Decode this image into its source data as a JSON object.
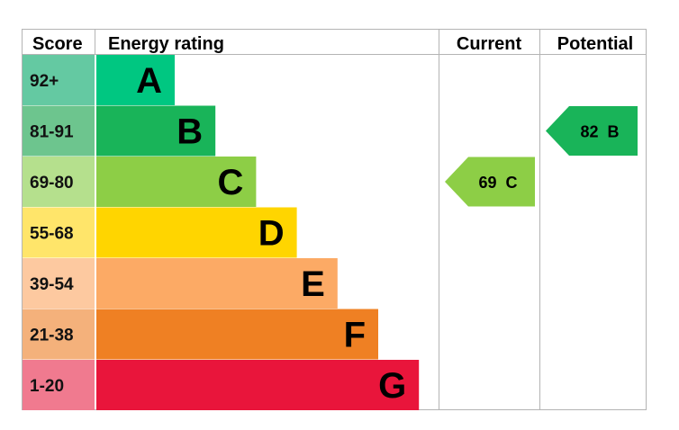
{
  "chart_data": {
    "type": "bar",
    "headers": {
      "score": "Score",
      "rating": "Energy rating",
      "current": "Current",
      "potential": "Potential"
    },
    "bands": [
      {
        "score": "92+",
        "letter": "A",
        "color": "#00c781",
        "score_bg": "#64c9a2"
      },
      {
        "score": "81-91",
        "letter": "B",
        "color": "#19b459",
        "score_bg": "#6dc58e"
      },
      {
        "score": "69-80",
        "letter": "C",
        "color": "#8dce46",
        "score_bg": "#b5e08d"
      },
      {
        "score": "55-68",
        "letter": "D",
        "color": "#ffd500",
        "score_bg": "#ffe56a"
      },
      {
        "score": "39-54",
        "letter": "E",
        "color": "#fcaa65",
        "score_bg": "#fdc9a0"
      },
      {
        "score": "21-38",
        "letter": "F",
        "color": "#ef8023",
        "score_bg": "#f4b17b"
      },
      {
        "score": "1-20",
        "letter": "G",
        "color": "#e9153b",
        "score_bg": "#f07a8f"
      }
    ],
    "current": {
      "value": 69,
      "letter": "C",
      "label": "69  C",
      "color": "#8dce46"
    },
    "potential": {
      "value": 82,
      "letter": "B",
      "label": "82  B",
      "color": "#19b459"
    }
  }
}
